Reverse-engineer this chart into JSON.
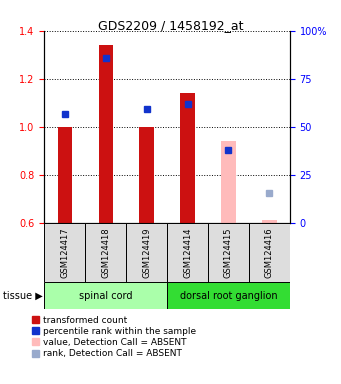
{
  "title": "GDS2209 / 1458192_at",
  "samples": [
    "GSM124417",
    "GSM124418",
    "GSM124419",
    "GSM124414",
    "GSM124415",
    "GSM124416"
  ],
  "red_values": [
    1.0,
    1.34,
    1.0,
    1.14,
    null,
    null
  ],
  "pink_values": [
    null,
    null,
    null,
    null,
    0.94,
    0.61
  ],
  "blue_values_left": [
    1.055,
    1.285,
    1.075,
    1.095,
    0.905,
    null
  ],
  "lightblue_values_left": [
    null,
    null,
    null,
    null,
    null,
    0.725
  ],
  "ylim_left": [
    0.6,
    1.4
  ],
  "ylim_right": [
    0,
    100
  ],
  "yticks_left": [
    0.6,
    0.8,
    1.0,
    1.2,
    1.4
  ],
  "yticks_right": [
    0,
    25,
    50,
    75,
    100
  ],
  "ytick_labels_right": [
    "0",
    "25",
    "50",
    "75",
    "100%"
  ],
  "bar_width": 0.35,
  "tissue_groups": [
    {
      "label": "spinal cord",
      "samples": [
        0,
        1,
        2
      ],
      "color": "#aaffaa"
    },
    {
      "label": "dorsal root ganglion",
      "samples": [
        3,
        4,
        5
      ],
      "color": "#33dd33"
    }
  ],
  "red_color": "#cc1111",
  "pink_color": "#ffbbbb",
  "blue_color": "#1133cc",
  "lightblue_color": "#99aacc",
  "sample_box_color": "#dddddd",
  "title_fontsize": 9,
  "tick_fontsize": 7,
  "label_fontsize": 7,
  "legend_fontsize": 6.5
}
